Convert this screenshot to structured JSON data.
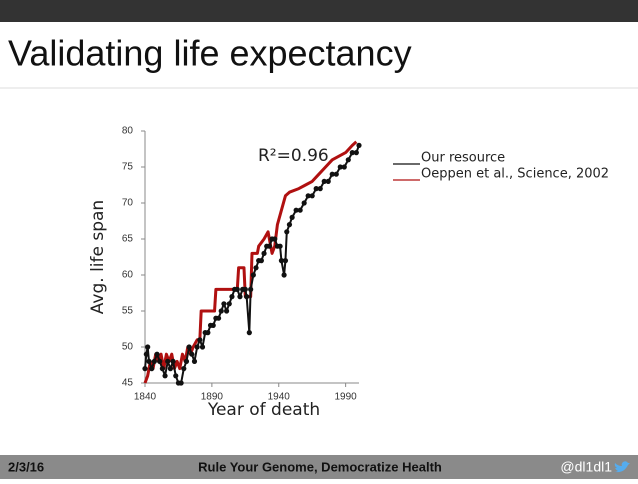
{
  "title": "Validating life expectancy",
  "footer": {
    "date": "2/3/16",
    "text": "Rule Your Genome, Democratize Health",
    "handle": "@dl1dl1"
  },
  "chart_data": {
    "type": "line",
    "annotation": "R²=0.96",
    "xlabel": "Year of death",
    "ylabel": "Avg. life span",
    "xlim": [
      1840,
      2000
    ],
    "xticks": [
      1840,
      1890,
      1940,
      1990
    ],
    "ylim": [
      45,
      80
    ],
    "yticks": [
      45,
      50,
      55,
      60,
      65,
      70,
      75,
      80
    ],
    "legend": "right",
    "series": [
      {
        "name": "Our resource",
        "color": "#111111",
        "markers": true,
        "x": [
          1840,
          1841,
          1842,
          1843,
          1845,
          1847,
          1849,
          1851,
          1853,
          1855,
          1857,
          1859,
          1861,
          1863,
          1865,
          1867,
          1869,
          1871,
          1873,
          1875,
          1877,
          1879,
          1881,
          1883,
          1885,
          1887,
          1889,
          1891,
          1893,
          1895,
          1897,
          1899,
          1901,
          1903,
          1905,
          1907,
          1909,
          1911,
          1913,
          1915,
          1916,
          1918,
          1919,
          1921,
          1923,
          1925,
          1927,
          1929,
          1931,
          1933,
          1935,
          1937,
          1939,
          1941,
          1942,
          1944,
          1945,
          1946,
          1948,
          1950,
          1953,
          1956,
          1959,
          1962,
          1965,
          1968,
          1971,
          1974,
          1977,
          1980,
          1983,
          1986,
          1989,
          1992,
          1995,
          1998,
          2000
        ],
        "values": [
          47,
          49,
          50,
          48,
          47,
          48,
          49,
          48,
          47,
          46,
          48,
          47,
          48,
          46,
          45,
          45,
          47,
          48,
          50,
          49,
          48,
          50,
          51,
          50,
          52,
          52,
          53,
          53,
          54,
          54,
          55,
          56,
          55,
          56,
          57,
          58,
          58,
          57,
          58,
          58,
          57,
          52,
          58,
          60,
          61,
          62,
          62,
          63,
          64,
          64,
          65,
          65,
          64,
          64,
          62,
          60,
          62,
          66,
          67,
          68,
          69,
          69,
          70,
          71,
          71,
          72,
          72,
          73,
          73,
          74,
          74,
          75,
          75,
          76,
          77,
          77,
          78
        ]
      },
      {
        "name": "Oeppen et al., Science, 2002",
        "color": "#b01010",
        "markers": false,
        "x": [
          1840,
          1842,
          1844,
          1846,
          1848,
          1850,
          1852,
          1854,
          1856,
          1858,
          1860,
          1862,
          1864,
          1866,
          1868,
          1870,
          1872,
          1874,
          1876,
          1879,
          1881,
          1882,
          1892,
          1893,
          1909,
          1910,
          1914,
          1915,
          1919,
          1920,
          1924,
          1925,
          1929,
          1932,
          1935,
          1937,
          1939,
          1942,
          1945,
          1948,
          1955,
          1960,
          1965,
          1970,
          1975,
          1980,
          1985,
          1990,
          1995,
          1998
        ],
        "values": [
          45,
          46,
          48,
          47,
          49,
          48,
          49,
          47,
          49,
          48,
          49,
          47,
          48,
          47,
          49,
          48,
          50,
          49,
          50,
          51,
          51,
          55,
          55,
          58,
          58,
          61,
          61,
          57,
          57,
          63,
          63,
          64,
          65,
          66,
          63,
          64,
          67,
          69,
          71,
          71.5,
          72,
          72.5,
          73,
          74,
          75,
          76,
          76.5,
          77,
          78,
          78.5
        ]
      }
    ]
  }
}
